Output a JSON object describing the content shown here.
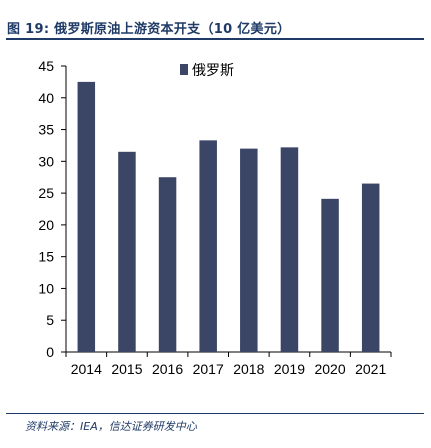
{
  "figure": {
    "title": "图 19:  俄罗斯原油上游资本开支（10 亿美元）",
    "source": "资料来源：IEA，信达证券研发中心"
  },
  "chart_data": {
    "type": "bar",
    "title": "",
    "xlabel": "",
    "ylabel": "",
    "categories": [
      "2014",
      "2015",
      "2016",
      "2017",
      "2018",
      "2019",
      "2020",
      "2021"
    ],
    "series": [
      {
        "name": "俄罗斯",
        "values": [
          42.5,
          31.5,
          27.5,
          33.3,
          32.0,
          32.2,
          24.1,
          26.5
        ]
      }
    ],
    "ylim": [
      0,
      45
    ],
    "yticks": [
      0,
      5,
      10,
      15,
      20,
      25,
      30,
      35,
      40,
      45
    ],
    "grid": false,
    "legend_position": "top-right",
    "colors": {
      "bar": "#3b4566",
      "axis": "#000000",
      "title": "#1f3a66"
    }
  }
}
